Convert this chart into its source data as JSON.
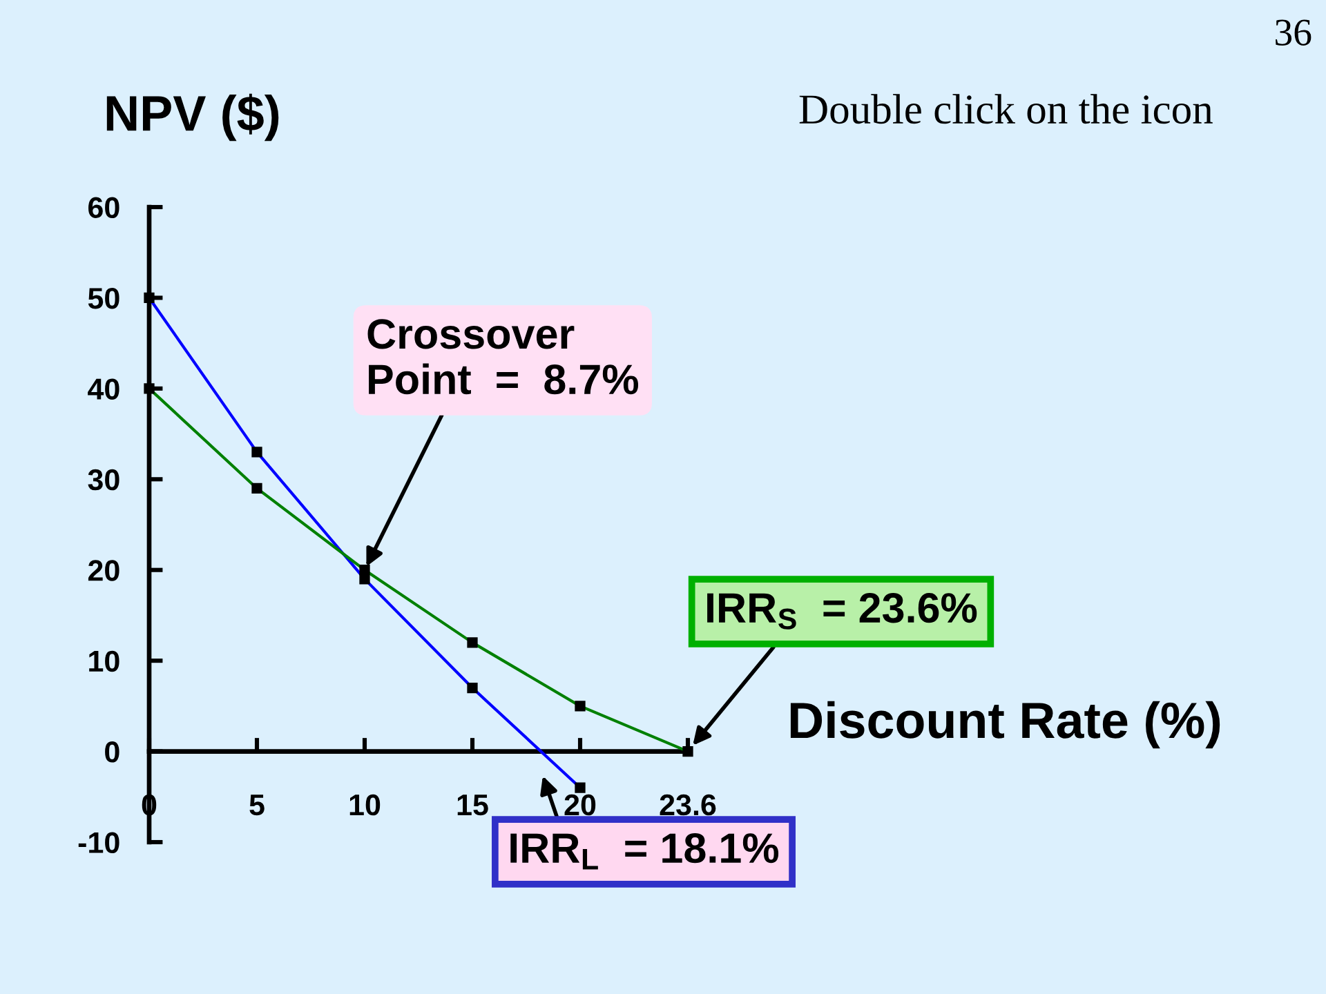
{
  "chart_data": {
    "type": "line",
    "xlabel": "Discount Rate (%)",
    "ylabel": "NPV ($)",
    "categories": [
      "0",
      "5",
      "10",
      "15",
      "20",
      "23.6"
    ],
    "series": [
      {
        "color": "#0000ff",
        "values": [
          50,
          33,
          19,
          7,
          -4,
          null
        ]
      },
      {
        "color": "#008000",
        "values": [
          40,
          29,
          20,
          12,
          5,
          0
        ]
      }
    ],
    "ylim": [
      -10,
      60
    ],
    "yticks": [
      -10,
      0,
      10,
      20,
      30,
      40,
      50,
      60
    ],
    "marker": "square",
    "annotations": [
      "36",
      "Double click on the icon",
      {
        "text": "Crossover\nPoint  =  8.7%",
        "x": "10",
        "y": 20
      },
      {
        "text": "IRR$_{S}$  = 23.6%",
        "x": "23.6",
        "y": 0
      },
      "IRR$_{L}$  = 18.1%"
    ]
  }
}
